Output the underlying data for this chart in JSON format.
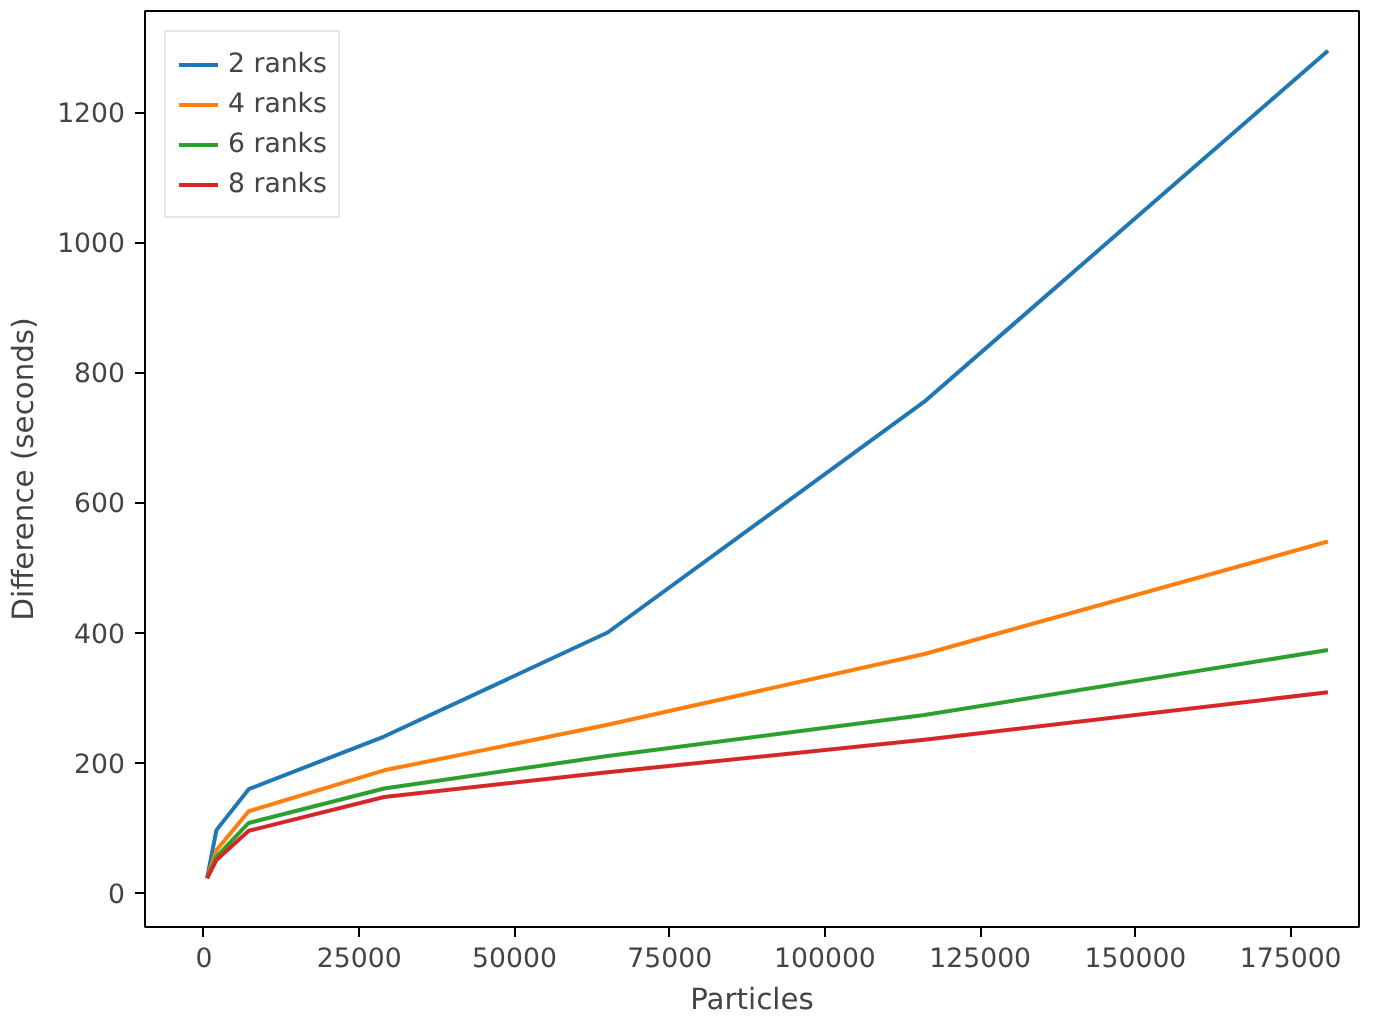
{
  "chart_data": {
    "type": "line",
    "xlabel": "Particles",
    "ylabel": "Difference (seconds)",
    "x": [
      500,
      2000,
      7200,
      29000,
      65000,
      116000,
      181000
    ],
    "series": [
      {
        "name": "2 ranks",
        "color": "#1f77b4",
        "values": [
          22,
          96,
          159,
          240,
          400,
          755,
          1295
        ]
      },
      {
        "name": "4 ranks",
        "color": "#ff7f0e",
        "values": [
          22,
          65,
          125,
          188,
          258,
          367,
          540
        ]
      },
      {
        "name": "6 ranks",
        "color": "#2ca02c",
        "values": [
          22,
          55,
          107,
          160,
          210,
          273,
          373
        ]
      },
      {
        "name": "8 ranks",
        "color": "#d62728",
        "values": [
          22,
          50,
          95,
          147,
          185,
          235,
          308
        ]
      }
    ],
    "xlim": [
      -9500,
      186000
    ],
    "ylim": [
      -53,
      1356
    ],
    "xticks": [
      0,
      25000,
      50000,
      75000,
      100000,
      125000,
      150000,
      175000
    ],
    "yticks": [
      0,
      200,
      400,
      600,
      800,
      1000,
      1200
    ],
    "grid": false,
    "legend": "top left",
    "marker": "none",
    "line_style": "solid"
  }
}
